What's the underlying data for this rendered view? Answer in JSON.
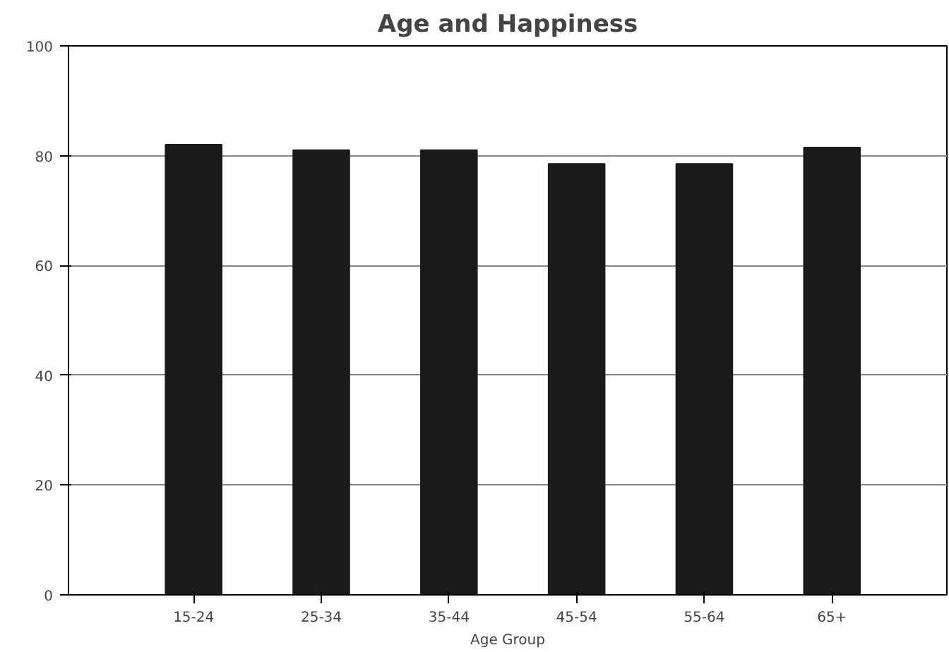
{
  "chart_data": {
    "type": "bar",
    "title": "Age and Happiness",
    "xlabel": "Age Group",
    "categories": [
      "15-24",
      "25-34",
      "35-44",
      "45-54",
      "55-64",
      "65+"
    ],
    "values": [
      82,
      81,
      81,
      78.5,
      78.5,
      81.5
    ],
    "color": "#1a1a1a",
    "ylim": [
      0,
      100
    ],
    "yticks": [
      0,
      20,
      40,
      60,
      80,
      100
    ],
    "grid": "y"
  }
}
